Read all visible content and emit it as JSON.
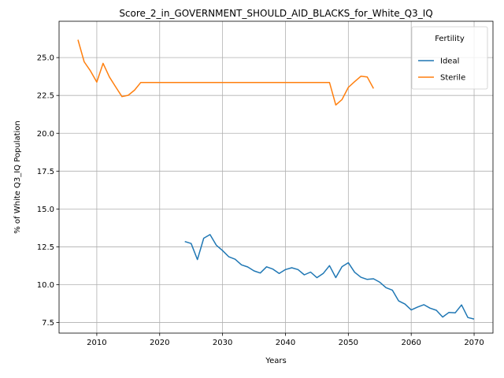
{
  "chart_data": {
    "type": "line",
    "title": "Score_2_in_GOVERNMENT_SHOULD_AID_BLACKS_for_White_Q3_IQ",
    "xlabel": "Years",
    "ylabel": "% of White Q3_IQ Population",
    "xlim": [
      2004,
      2073
    ],
    "ylim": [
      6.8,
      27.4
    ],
    "xticks": [
      2010,
      2020,
      2030,
      2040,
      2050,
      2060,
      2070
    ],
    "xtick_labels": [
      "2010",
      "2020",
      "2030",
      "2040",
      "2050",
      "2060",
      "2070"
    ],
    "yticks": [
      7.5,
      10.0,
      12.5,
      15.0,
      17.5,
      20.0,
      22.5,
      25.0
    ],
    "ytick_labels": [
      "7.5",
      "10.0",
      "12.5",
      "15.0",
      "17.5",
      "20.0",
      "22.5",
      "25.0"
    ],
    "grid": true,
    "legend": {
      "title": "Fertility",
      "placement": "top-right"
    },
    "series": [
      {
        "name": "Ideal",
        "color": "#1f77b4",
        "x": [
          2024,
          2025,
          2026,
          2027,
          2028,
          2029,
          2030,
          2031,
          2032,
          2033,
          2034,
          2035,
          2036,
          2037,
          2038,
          2039,
          2040,
          2041,
          2042,
          2043,
          2044,
          2045,
          2046,
          2047,
          2048,
          2049,
          2050,
          2051,
          2052,
          2053,
          2054,
          2055,
          2056,
          2057,
          2058,
          2059,
          2060,
          2061,
          2062,
          2063,
          2064,
          2065,
          2066,
          2067,
          2068,
          2069,
          2070
        ],
        "y": [
          12.85,
          12.72,
          11.66,
          13.07,
          13.31,
          12.61,
          12.25,
          11.84,
          11.68,
          11.31,
          11.17,
          10.91,
          10.77,
          11.18,
          11.03,
          10.74,
          11.0,
          11.12,
          11.0,
          10.65,
          10.83,
          10.46,
          10.74,
          11.26,
          10.47,
          11.19,
          11.45,
          10.82,
          10.49,
          10.35,
          10.39,
          10.16,
          9.8,
          9.64,
          8.93,
          8.72,
          8.33,
          8.52,
          8.68,
          8.45,
          8.31,
          7.86,
          8.17,
          8.14,
          8.66,
          7.83,
          7.73
        ]
      },
      {
        "name": "Sterile",
        "color": "#ff7f0e",
        "x": [
          2007,
          2008,
          2009,
          2010,
          2011,
          2012,
          2013,
          2014,
          2015,
          2016,
          2017,
          2018,
          2019,
          2020,
          2021,
          2022,
          2023,
          2024,
          2025,
          2026,
          2027,
          2028,
          2029,
          2030,
          2031,
          2032,
          2033,
          2034,
          2035,
          2036,
          2037,
          2038,
          2039,
          2040,
          2041,
          2042,
          2043,
          2044,
          2045,
          2046,
          2047,
          2048,
          2049,
          2050,
          2051,
          2052,
          2053,
          2054
        ],
        "y": [
          26.18,
          24.72,
          24.12,
          23.38,
          24.62,
          23.72,
          23.06,
          22.42,
          22.51,
          22.85,
          23.36,
          23.36,
          23.36,
          23.36,
          23.36,
          23.36,
          23.36,
          23.36,
          23.36,
          23.36,
          23.36,
          23.36,
          23.36,
          23.36,
          23.36,
          23.36,
          23.36,
          23.36,
          23.36,
          23.36,
          23.36,
          23.36,
          23.36,
          23.36,
          23.36,
          23.36,
          23.36,
          23.36,
          23.36,
          23.36,
          23.36,
          21.87,
          22.23,
          23.03,
          23.41,
          23.77,
          23.72,
          22.96
        ]
      }
    ]
  }
}
